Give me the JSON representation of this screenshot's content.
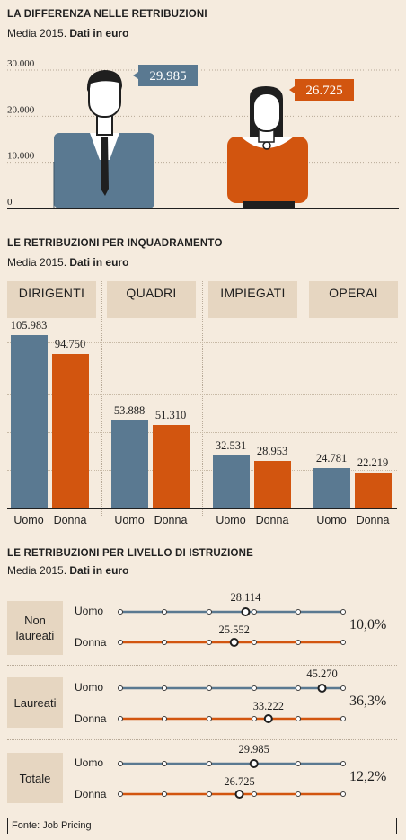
{
  "colors": {
    "uomo": "#5a7991",
    "donna": "#d2550f",
    "panel": "#e6d6c1",
    "bg": "#f5ebde"
  },
  "section1": {
    "title": "LA DIFFERENZA NELLE RETRIBUZIONI",
    "subtitle_plain": "Media 2015. ",
    "subtitle_bold": "Dati in euro"
  },
  "section2": {
    "title": "LE RETRIBUZIONI PER INQUADRAMENTO",
    "subtitle_plain": "Media 2015. ",
    "subtitle_bold": "Dati in euro"
  },
  "section3": {
    "title": "LE RETRIBUZIONI PER LIVELLO DI ISTRUZIONE",
    "subtitle_plain": "Media 2015. ",
    "subtitle_bold": "Dati in euro"
  },
  "source": "Fonte: Job Pricing",
  "chart_data": [
    {
      "type": "bar",
      "title": "LA DIFFERENZA NELLE RETRIBUZIONI",
      "subtitle": "Media 2015. Dati in euro",
      "categories": [
        "Uomo",
        "Donna"
      ],
      "values": [
        29985,
        26725
      ],
      "value_labels": [
        "29.985",
        "26.725"
      ],
      "yticks": [
        "30.000",
        "20.000",
        "10.000",
        "0"
      ],
      "ylim": [
        0,
        30000
      ]
    },
    {
      "type": "bar",
      "title": "LE RETRIBUZIONI PER INQUADRAMENTO",
      "subtitle": "Media 2015. Dati in euro",
      "groups": [
        "DIRIGENTI",
        "QUADRI",
        "IMPIEGATI",
        "OPERAI"
      ],
      "series": [
        {
          "name": "Uomo",
          "values": [
            105983,
            53888,
            32531,
            24781
          ],
          "labels": [
            "105.983",
            "53.888",
            "32.531",
            "24.781"
          ]
        },
        {
          "name": "Donna",
          "values": [
            94750,
            51310,
            28953,
            22219
          ],
          "labels": [
            "94.750",
            "51.310",
            "28.953",
            "22.219"
          ]
        }
      ],
      "ylim": [
        0,
        110000
      ]
    },
    {
      "type": "scatter",
      "title": "LE RETRIBUZIONI PER LIVELLO DI ISTRUZIONE",
      "subtitle": "Media 2015. Dati in euro",
      "range": [
        0,
        50000
      ],
      "rows": [
        {
          "label": "Non laureati",
          "gap": "10,0%",
          "uomo": 28114,
          "uomo_label": "28.114",
          "donna": 25552,
          "donna_label": "25.552"
        },
        {
          "label": "Laureati",
          "gap": "36,3%",
          "uomo": 45270,
          "uomo_label": "45.270",
          "donna": 33222,
          "donna_label": "33.222"
        },
        {
          "label": "Totale",
          "gap": "12,2%",
          "uomo": 29985,
          "uomo_label": "29.985",
          "donna": 26725,
          "donna_label": "26.725"
        }
      ],
      "series_labels": [
        "Uomo",
        "Donna"
      ]
    }
  ]
}
